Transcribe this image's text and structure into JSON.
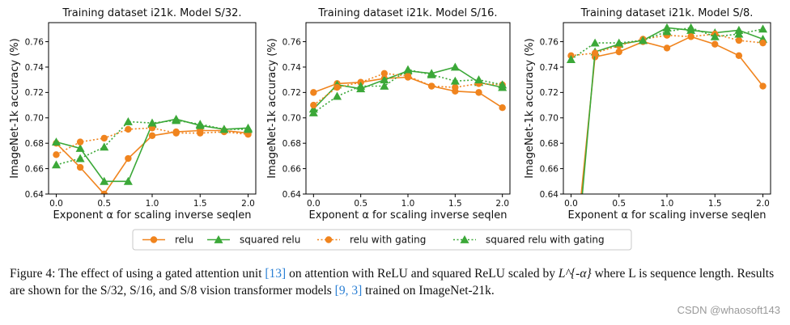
{
  "colors": {
    "relu": "#f0841e",
    "squared_relu": "#3ba838",
    "axis": "#000000"
  },
  "legend": {
    "items": [
      {
        "label": "relu",
        "style": "relu-solid"
      },
      {
        "label": "squared relu",
        "style": "sq-solid"
      },
      {
        "label": "relu with gating",
        "style": "relu-dotted"
      },
      {
        "label": "squared relu with gating",
        "style": "sq-dotted"
      }
    ]
  },
  "chart_data": [
    {
      "type": "line",
      "title": "Training dataset i21k. Model S/32.",
      "xlabel": "Exponent α for scaling inverse seqlen",
      "ylabel": "ImageNet-1k accuracy (%)",
      "xlim": [
        -0.08,
        2.08
      ],
      "ylim": [
        0.64,
        0.775
      ],
      "xticks": [
        0.0,
        0.5,
        1.0,
        1.5,
        2.0
      ],
      "xtick_labels": [
        "0.0",
        "0.5",
        "1.0",
        "1.5",
        "2.0"
      ],
      "yticks": [
        0.64,
        0.66,
        0.68,
        0.7,
        0.72,
        0.74,
        0.76
      ],
      "ytick_labels": [
        "0.64",
        "0.66",
        "0.68",
        "0.70",
        "0.72",
        "0.74",
        "0.76"
      ],
      "x": [
        0.0,
        0.25,
        0.5,
        0.75,
        1.0,
        1.25,
        1.5,
        1.75,
        2.0
      ],
      "series": [
        {
          "name": "relu",
          "values": [
            0.68,
            0.661,
            0.64,
            0.668,
            0.686,
            0.689,
            0.69,
            0.69,
            0.688
          ]
        },
        {
          "name": "squared relu",
          "values": [
            0.681,
            0.676,
            0.65,
            0.65,
            0.695,
            0.699,
            0.694,
            0.691,
            0.692
          ]
        },
        {
          "name": "relu with gating",
          "values": [
            0.671,
            0.681,
            0.684,
            0.691,
            0.692,
            0.688,
            0.688,
            0.689,
            0.687
          ]
        },
        {
          "name": "squared relu with gating",
          "values": [
            0.663,
            0.668,
            0.677,
            0.697,
            0.696,
            0.698,
            0.695,
            0.691,
            0.691
          ]
        }
      ]
    },
    {
      "type": "line",
      "title": "Training dataset i21k. Model S/16.",
      "xlabel": "Exponent α for scaling inverse seqlen",
      "ylabel": "ImageNet-1k accuracy (%)",
      "xlim": [
        -0.08,
        2.08
      ],
      "ylim": [
        0.64,
        0.775
      ],
      "xticks": [
        0.0,
        0.5,
        1.0,
        1.5,
        2.0
      ],
      "xtick_labels": [
        "0.0",
        "0.5",
        "1.0",
        "1.5",
        "2.0"
      ],
      "yticks": [
        0.64,
        0.66,
        0.68,
        0.7,
        0.72,
        0.74,
        0.76
      ],
      "ytick_labels": [
        "0.64",
        "0.66",
        "0.68",
        "0.70",
        "0.72",
        "0.74",
        "0.76"
      ],
      "x": [
        0.0,
        0.25,
        0.5,
        0.75,
        1.0,
        1.25,
        1.5,
        1.75,
        2.0
      ],
      "series": [
        {
          "name": "relu",
          "values": [
            0.72,
            0.727,
            0.728,
            0.731,
            0.732,
            0.725,
            0.721,
            0.72,
            0.708
          ]
        },
        {
          "name": "squared relu",
          "values": [
            0.707,
            0.726,
            0.723,
            0.73,
            0.737,
            0.735,
            0.74,
            0.728,
            0.724
          ]
        },
        {
          "name": "relu with gating",
          "values": [
            0.71,
            0.724,
            0.728,
            0.735,
            0.733,
            0.725,
            0.724,
            0.727,
            0.726
          ]
        },
        {
          "name": "squared relu with gating",
          "values": [
            0.704,
            0.717,
            0.725,
            0.725,
            0.738,
            0.734,
            0.729,
            0.73,
            0.726
          ]
        }
      ]
    },
    {
      "type": "line",
      "title": "Training dataset i21k. Model S/8.",
      "xlabel": "Exponent α for scaling inverse seqlen",
      "ylabel": "ImageNet-1k accuracy (%)",
      "xlim": [
        -0.08,
        2.08
      ],
      "ylim": [
        0.64,
        0.775
      ],
      "xticks": [
        0.0,
        0.5,
        1.0,
        1.5,
        2.0
      ],
      "xtick_labels": [
        "0.0",
        "0.5",
        "1.0",
        "1.5",
        "2.0"
      ],
      "yticks": [
        0.64,
        0.66,
        0.68,
        0.7,
        0.72,
        0.74,
        0.76
      ],
      "ytick_labels": [
        "0.64",
        "0.66",
        "0.68",
        "0.70",
        "0.72",
        "0.74",
        "0.76"
      ],
      "x": [
        0.0,
        0.25,
        0.5,
        0.75,
        1.0,
        1.25,
        1.5,
        1.75,
        2.0
      ],
      "series": [
        {
          "name": "relu",
          "values": [
            0.56,
            0.748,
            0.752,
            0.76,
            0.755,
            0.764,
            0.758,
            0.749,
            0.725
          ]
        },
        {
          "name": "squared relu",
          "values": [
            0.54,
            0.752,
            0.758,
            0.761,
            0.771,
            0.769,
            0.767,
            0.769,
            0.762
          ]
        },
        {
          "name": "relu with gating",
          "values": [
            0.749,
            0.751,
            0.757,
            0.762,
            0.765,
            0.764,
            0.766,
            0.761,
            0.759
          ]
        },
        {
          "name": "squared relu with gating",
          "values": [
            0.746,
            0.759,
            0.759,
            0.761,
            0.768,
            0.771,
            0.764,
            0.766,
            0.77
          ]
        }
      ]
    }
  ],
  "caption": {
    "text_1": "Figure 4: The effect of using a gated attention unit ",
    "ref_1": "[13]",
    "text_2": " on attention with ReLU and squared ReLU scaled by ",
    "math_1": "L^{-α}",
    "text_3": " where L is sequence length. Results are shown for the S/32, S/16, and S/8 vision transformer models ",
    "ref_2": "[9, 3]",
    "text_4": " trained on ImageNet-21k."
  },
  "watermark": "CSDN @whaosoft143"
}
